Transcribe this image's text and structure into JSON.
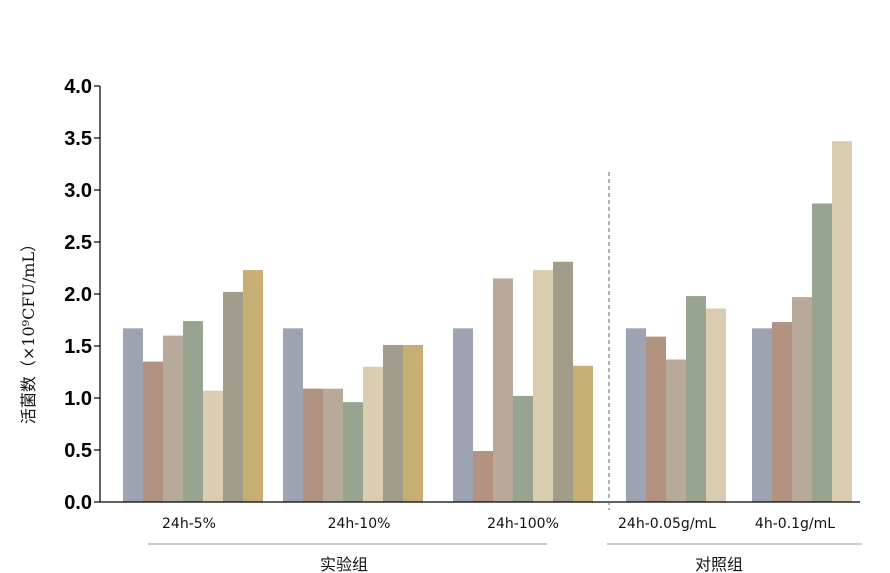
{
  "chart_data": {
    "type": "bar",
    "title": "",
    "ylabel": "活菌数（×10⁹CFU/mL）",
    "ylim": [
      0,
      4.0
    ],
    "yticks": [
      "0.0",
      "0.5",
      "1.0",
      "1.5",
      "2.0",
      "2.5",
      "3.0",
      "3.5",
      "4.0"
    ],
    "categories": [
      "24h-5%",
      "24h-10%",
      "24h-100%",
      "24h-0.05g/mL",
      "4h-0.1g/mL"
    ],
    "groups": [
      {
        "label": "实验组",
        "categories": [
          "24h-5%",
          "24h-10%",
          "24h-100%"
        ]
      },
      {
        "label": "对照组",
        "categories": [
          "24h-0.05g/mL",
          "4h-0.1g/mL"
        ]
      }
    ],
    "bars": [
      [
        1.67,
        1.35,
        1.6,
        1.74,
        1.07,
        2.02,
        2.23
      ],
      [
        1.67,
        1.09,
        1.09,
        0.96,
        1.3,
        1.51,
        1.51
      ],
      [
        1.67,
        0.49,
        2.15,
        1.02,
        2.23,
        2.31,
        1.31
      ],
      [
        1.67,
        1.59,
        1.37,
        1.98,
        1.86
      ],
      [
        1.67,
        1.73,
        1.97,
        2.87,
        3.47
      ]
    ],
    "bar_colors": [
      "#9ea3b2",
      "#b29280",
      "#b8a99b",
      "#97a48f",
      "#d9ccaf",
      "#a29c8b",
      "#c6ae75"
    ],
    "legend": "none",
    "grid": false
  }
}
